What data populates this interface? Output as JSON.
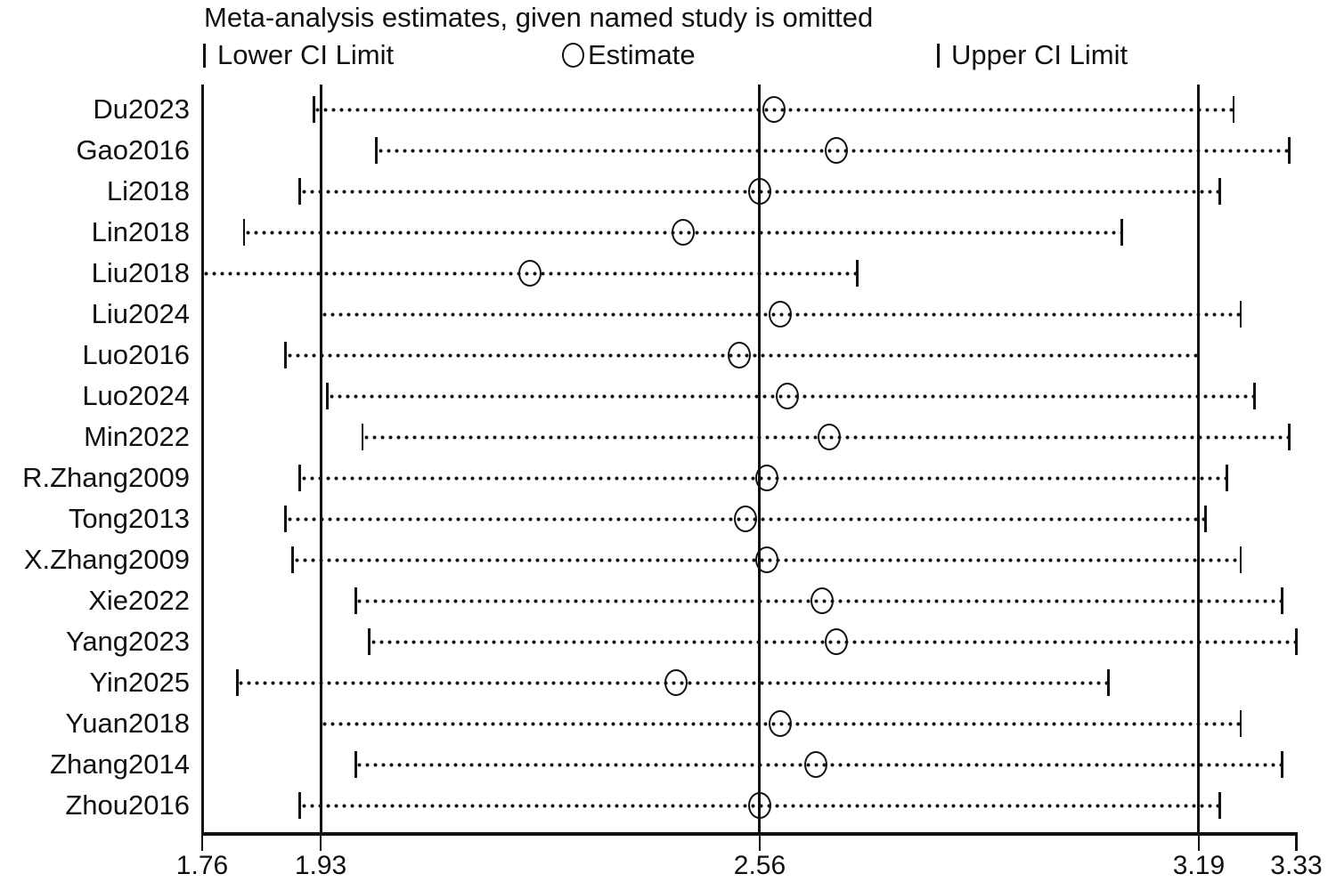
{
  "title": "Meta-analysis estimates, given named study is omitted",
  "legend": {
    "lower_label": "Lower CI Limit",
    "estimate_label": "Estimate",
    "upper_label": "Upper CI Limit"
  },
  "colors": {
    "foreground": "#111111",
    "background": "#ffffff"
  },
  "chart_data": {
    "type": "scatter",
    "subtype": "leave-one-out-sensitivity-forest-plot",
    "title": "Meta-analysis estimates, given named study is omitted",
    "xlabel": "",
    "ylabel": "",
    "xlim": [
      1.76,
      3.33
    ],
    "x_ticks": [
      1.76,
      1.93,
      2.56,
      3.19,
      3.33
    ],
    "x_tick_labels": [
      "1.76",
      "1.93",
      "2.56",
      "3.19",
      "3.33"
    ],
    "reference_lines": [
      1.76,
      1.93,
      2.56,
      3.19
    ],
    "grid": "vertical reference lines only",
    "legend_position": "top",
    "marker_style": "open circle with dotted CI line and bar ticks at CI limits",
    "studies": [
      {
        "label": "Du2023",
        "lower": 1.92,
        "estimate": 2.58,
        "upper": 3.24
      },
      {
        "label": "Gao2016",
        "lower": 2.01,
        "estimate": 2.67,
        "upper": 3.32
      },
      {
        "label": "Li2018",
        "lower": 1.9,
        "estimate": 2.56,
        "upper": 3.22
      },
      {
        "label": "Lin2018",
        "lower": 1.82,
        "estimate": 2.45,
        "upper": 3.08
      },
      {
        "label": "Liu2018",
        "lower": 1.76,
        "estimate": 2.23,
        "upper": 2.7
      },
      {
        "label": "Liu2024",
        "lower": 1.93,
        "estimate": 2.59,
        "upper": 3.25
      },
      {
        "label": "Luo2016",
        "lower": 1.88,
        "estimate": 2.53,
        "upper": 3.19
      },
      {
        "label": "Luo2024",
        "lower": 1.94,
        "estimate": 2.6,
        "upper": 3.27
      },
      {
        "label": "Min2022",
        "lower": 1.99,
        "estimate": 2.66,
        "upper": 3.32
      },
      {
        "label": "R.Zhang2009",
        "lower": 1.9,
        "estimate": 2.57,
        "upper": 3.23
      },
      {
        "label": "Tong2013",
        "lower": 1.88,
        "estimate": 2.54,
        "upper": 3.2
      },
      {
        "label": "X.Zhang2009",
        "lower": 1.89,
        "estimate": 2.57,
        "upper": 3.25
      },
      {
        "label": "Xie2022",
        "lower": 1.98,
        "estimate": 2.65,
        "upper": 3.31
      },
      {
        "label": "Yang2023",
        "lower": 2.0,
        "estimate": 2.67,
        "upper": 3.33
      },
      {
        "label": "Yin2025",
        "lower": 1.81,
        "estimate": 2.44,
        "upper": 3.06
      },
      {
        "label": "Yuan2018",
        "lower": 1.93,
        "estimate": 2.59,
        "upper": 3.25
      },
      {
        "label": "Zhang2014",
        "lower": 1.98,
        "estimate": 2.64,
        "upper": 3.31
      },
      {
        "label": "Zhou2016",
        "lower": 1.9,
        "estimate": 2.56,
        "upper": 3.22
      }
    ]
  }
}
